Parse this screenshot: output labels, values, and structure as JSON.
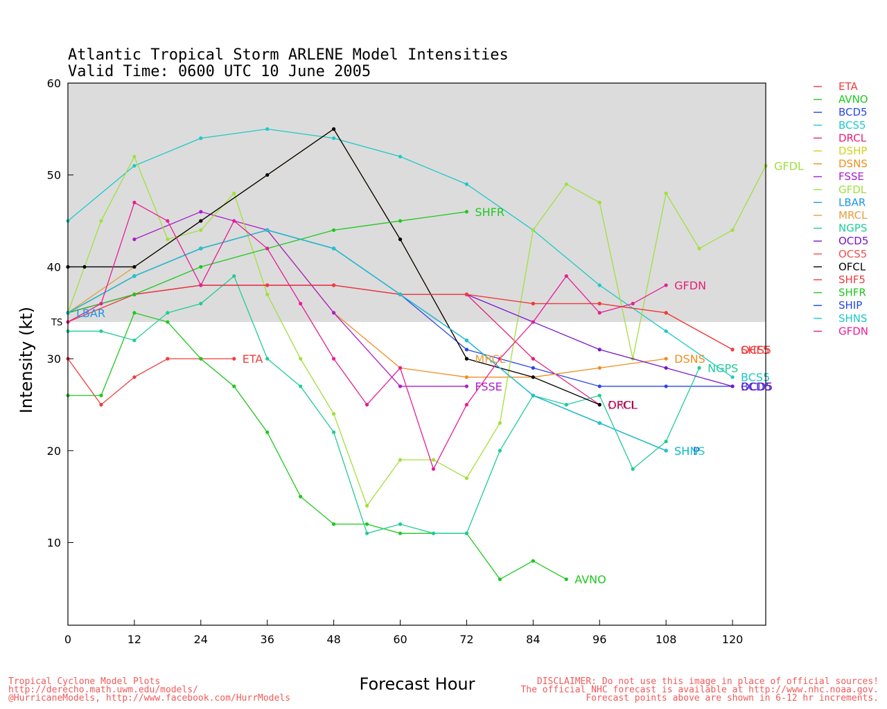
{
  "chart_data": {
    "type": "line",
    "title": "Atlantic Tropical Storm ARLENE Model Intensities",
    "subtitle": "Valid Time: 0600 UTC 10 June 2005",
    "xlabel": "Forecast Hour",
    "ylabel": "Intensity (kt)",
    "xlim": [
      0,
      126
    ],
    "ylim": [
      1,
      60
    ],
    "xticks": [
      0,
      12,
      24,
      36,
      48,
      60,
      72,
      84,
      96,
      108,
      120
    ],
    "yticks": [
      10,
      20,
      30,
      40,
      50,
      60
    ],
    "ts_threshold": 34,
    "ts_label": "TS",
    "grid": false,
    "legend_position": "right",
    "series": [
      {
        "name": "ETA",
        "color": "#f03c3c",
        "x": [
          0,
          6,
          12,
          18,
          24,
          30
        ],
        "y": [
          30,
          25,
          28,
          30,
          30,
          30
        ]
      },
      {
        "name": "AVNO",
        "color": "#1ec81e",
        "x": [
          0,
          6,
          12,
          18,
          24,
          30,
          36,
          42,
          48,
          54,
          60,
          66,
          72,
          78,
          84,
          90
        ],
        "y": [
          26,
          26,
          35,
          34,
          30,
          27,
          22,
          15,
          12,
          12,
          11,
          11,
          11,
          6,
          8,
          6
        ]
      },
      {
        "name": "BCD5",
        "color": "#2846e6",
        "x": [
          0,
          12,
          24,
          36,
          48,
          60,
          72,
          84,
          96,
          108,
          120
        ],
        "y": [
          35,
          39,
          42,
          44,
          42,
          37,
          31,
          29,
          27,
          27,
          27
        ]
      },
      {
        "name": "BCS5",
        "color": "#1ec8c8",
        "x": [
          0,
          12,
          24,
          36,
          48,
          60,
          72,
          84,
          96,
          108,
          120
        ],
        "y": [
          45,
          51,
          54,
          55,
          54,
          52,
          49,
          44,
          38,
          33,
          28
        ]
      },
      {
        "name": "DRCL",
        "color": "#e61e78",
        "x": [
          0,
          12,
          24,
          36,
          48,
          60,
          72,
          84,
          96
        ],
        "y": [
          35,
          37,
          38,
          38,
          38,
          37,
          37,
          30,
          25
        ]
      },
      {
        "name": "DSHP",
        "color": "#d2d21e",
        "x": [],
        "y": []
      },
      {
        "name": "DSNS",
        "color": "#f08c1e",
        "x": [
          0,
          12,
          24,
          36,
          48,
          60,
          72,
          84,
          96,
          108
        ],
        "y": [
          35,
          39,
          42,
          44,
          35,
          29,
          28,
          28,
          29,
          30
        ]
      },
      {
        "name": "FSSE",
        "color": "#aa1ec8",
        "x": [
          12,
          24,
          36,
          48,
          60,
          72
        ],
        "y": [
          43,
          46,
          44,
          35,
          27,
          27
        ]
      },
      {
        "name": "GFDL",
        "color": "#a0e03c",
        "x": [
          0,
          6,
          12,
          18,
          24,
          30,
          36,
          42,
          48,
          54,
          60,
          66,
          72,
          78,
          84,
          90,
          96,
          102,
          108,
          114,
          120,
          126
        ],
        "y": [
          35,
          45,
          52,
          43,
          44,
          48,
          37,
          30,
          24,
          14,
          19,
          19,
          17,
          23,
          44,
          49,
          47,
          30,
          48,
          42,
          44,
          51
        ]
      },
      {
        "name": "LBAR",
        "color": "#1e96e6",
        "x": [
          0,
          12,
          24,
          36,
          48,
          60,
          72,
          84,
          96,
          108
        ],
        "y": [
          35,
          39,
          42,
          44,
          42,
          37,
          32,
          26,
          23,
          20
        ]
      },
      {
        "name": "MRCL",
        "color": "#e6a03c",
        "x": [
          0,
          12,
          24,
          36,
          48,
          60,
          72
        ],
        "y": [
          35,
          40,
          45,
          50,
          55,
          43,
          30
        ]
      },
      {
        "name": "NGPS",
        "color": "#1ecc96",
        "x": [
          0,
          6,
          12,
          18,
          24,
          30,
          36,
          42,
          48,
          54,
          60,
          66,
          72,
          78,
          84,
          90,
          96,
          102,
          108,
          114
        ],
        "y": [
          33,
          33,
          32,
          35,
          36,
          39,
          30,
          27,
          22,
          11,
          12,
          11,
          11,
          20,
          26,
          25,
          26,
          18,
          21,
          29
        ]
      },
      {
        "name": "OCD5",
        "color": "#7814c8",
        "x": [
          0,
          12,
          24,
          36,
          48,
          60,
          72,
          84,
          96,
          108,
          120
        ],
        "y": [
          35,
          37,
          38,
          38,
          38,
          37,
          37,
          34,
          31,
          29,
          27
        ]
      },
      {
        "name": "OCS5",
        "color": "#f05050",
        "x": [
          0,
          12,
          24,
          36,
          48,
          60,
          72,
          84,
          96,
          108,
          120
        ],
        "y": [
          35,
          37,
          38,
          38,
          38,
          37,
          37,
          36,
          36,
          35,
          31
        ]
      },
      {
        "name": "OFCL",
        "color": "#000000",
        "x": [
          0,
          3,
          12,
          24,
          36,
          48,
          60,
          72,
          84,
          96
        ],
        "y": [
          40,
          40,
          40,
          45,
          50,
          55,
          43,
          30,
          28,
          25
        ]
      },
      {
        "name": "SHF5",
        "color": "#f03c3c",
        "x": [
          0,
          12,
          24,
          36,
          48,
          60,
          72,
          84,
          96,
          108,
          120
        ],
        "y": [
          34,
          37,
          38,
          38,
          38,
          37,
          37,
          36,
          36,
          35,
          31
        ]
      },
      {
        "name": "SHFR",
        "color": "#1ec81e",
        "x": [
          0,
          12,
          24,
          36,
          48,
          60,
          72
        ],
        "y": [
          35,
          37,
          40,
          42,
          44,
          45,
          46
        ]
      },
      {
        "name": "SHIP",
        "color": "#1e46e6",
        "x": [
          0,
          12,
          24,
          36,
          48,
          60,
          72,
          84,
          96,
          108
        ],
        "y": [
          35,
          39,
          42,
          44,
          42,
          37,
          32,
          26,
          23,
          20
        ]
      },
      {
        "name": "SHNS",
        "color": "#1ec8c8",
        "x": [
          0,
          12,
          24,
          36,
          48,
          60,
          72,
          84,
          96,
          108
        ],
        "y": [
          35,
          39,
          42,
          44,
          42,
          37,
          32,
          26,
          23,
          20
        ]
      },
      {
        "name": "GFDN",
        "color": "#e61e96",
        "x": [
          0,
          6,
          12,
          18,
          24,
          30,
          36,
          42,
          48,
          54,
          60,
          66,
          72,
          78,
          84,
          90,
          96,
          102,
          108
        ],
        "y": [
          34,
          36,
          47,
          45,
          38,
          45,
          42,
          36,
          30,
          25,
          29,
          18,
          25,
          30,
          34,
          39,
          35,
          36,
          38
        ]
      }
    ],
    "annotations": [
      {
        "text": "SHFR",
        "color": "#1ec81e",
        "x": 72,
        "y": 46
      },
      {
        "text": "GFDL",
        "color": "#a0e03c",
        "x": 126,
        "y": 51
      },
      {
        "text": "GFDN",
        "color": "#e61e78",
        "x": 108,
        "y": 38
      },
      {
        "text": "LBAR",
        "color": "#1e96e6",
        "x": 0,
        "y": 35
      },
      {
        "text": "ETA",
        "color": "#f03c3c",
        "x": 30,
        "y": 30
      },
      {
        "text": "MRCL",
        "color": "#e6a03c",
        "x": 72,
        "y": 30
      },
      {
        "text": "FSSE",
        "color": "#aa1ec8",
        "x": 72,
        "y": 27
      },
      {
        "text": "DSNS",
        "color": "#f08c1e",
        "x": 108,
        "y": 30
      },
      {
        "text": "NGPS",
        "color": "#1ecc96",
        "x": 114,
        "y": 29
      },
      {
        "text": "OCS5",
        "color": "#f03c3c",
        "x": 120,
        "y": 31
      },
      {
        "text": "SHF5",
        "color": "#f03c3c",
        "x": 120,
        "y": 31
      },
      {
        "text": "BCS5",
        "color": "#1ec8c8",
        "x": 120,
        "y": 28
      },
      {
        "text": "BCD5",
        "color": "#2846e6",
        "x": 120,
        "y": 27
      },
      {
        "text": "OCD5",
        "color": "#7814c8",
        "x": 120,
        "y": 27
      },
      {
        "text": "OFCL",
        "color": "#000000",
        "x": 96,
        "y": 25
      },
      {
        "text": "DRCL",
        "color": "#e61e78",
        "x": 96,
        "y": 25
      },
      {
        "text": "SHIP",
        "color": "#1e46e6",
        "x": 108,
        "y": 20
      },
      {
        "text": "SHNS",
        "color": "#1ec8c8",
        "x": 108,
        "y": 20
      },
      {
        "text": "AVNO",
        "color": "#1ec81e",
        "x": 90,
        "y": 6
      }
    ]
  },
  "footer": {
    "left": [
      "Tropical Cyclone Model Plots",
      "http://derecho.math.uwm.edu/models/",
      "@HurricaneModels, http://www.facebook.com/HurrModels"
    ],
    "right": [
      "DISCLAIMER: Do not use this image in place of official sources!",
      "The official NHC forecast is available at http://www.nhc.noaa.gov.",
      "Forecast points above are shown in 6-12 hr increments."
    ],
    "color": "#f05a5a"
  }
}
